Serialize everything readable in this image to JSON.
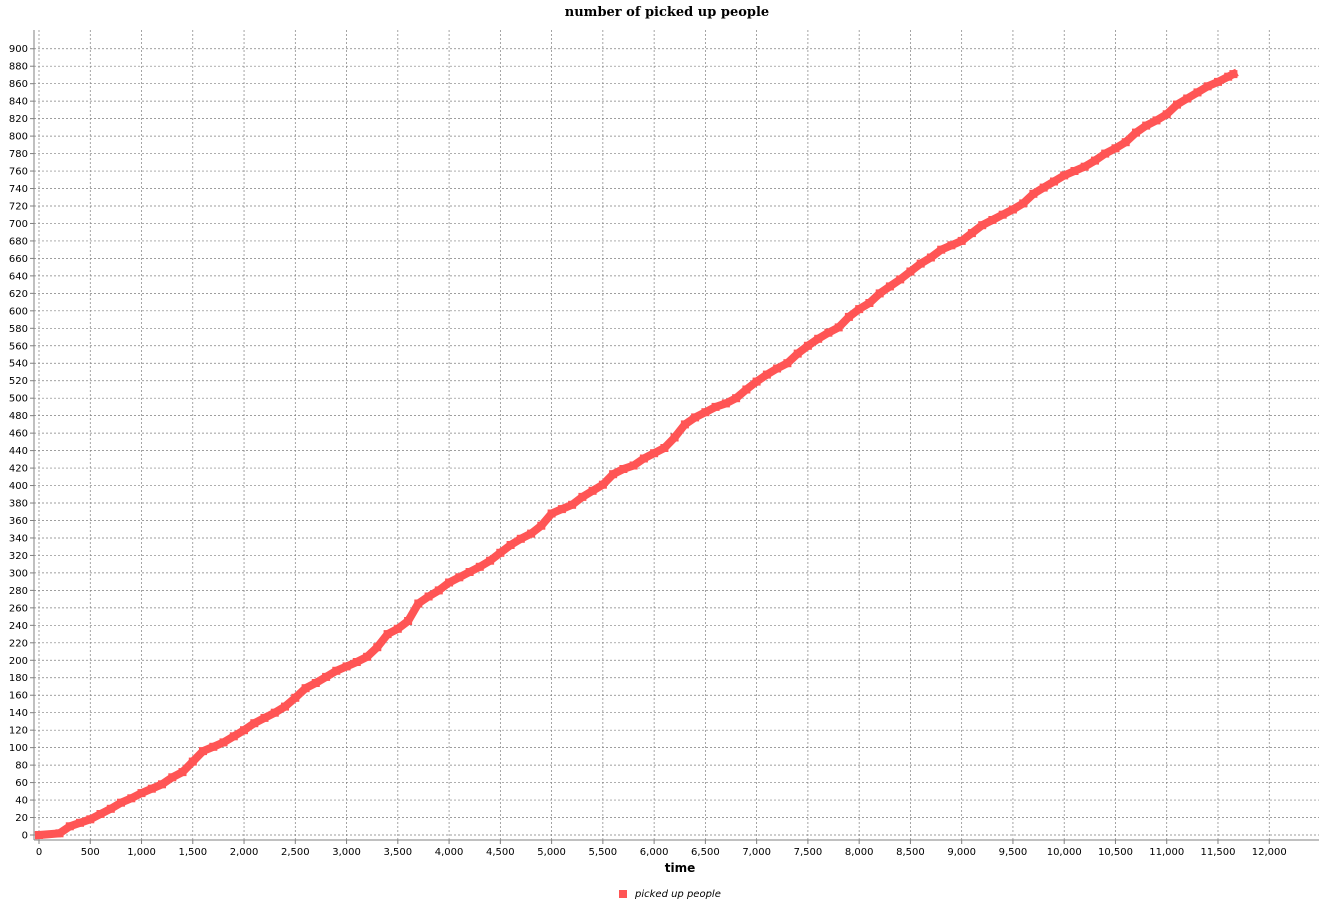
{
  "chart_data": {
    "type": "line",
    "title": "number of picked up people",
    "xlabel": "time",
    "ylabel": "",
    "xlim": [
      0,
      12300
    ],
    "ylim": [
      0,
      910
    ],
    "x_ticks": [
      0,
      500,
      1000,
      1500,
      2000,
      2500,
      3000,
      3500,
      4000,
      4500,
      5000,
      5500,
      6000,
      6500,
      7000,
      7500,
      8000,
      8500,
      9000,
      9500,
      10000,
      10500,
      11000,
      11500,
      12000
    ],
    "x_tick_labels": [
      "0",
      "500",
      "1,000",
      "1,500",
      "2,000",
      "2,500",
      "3,000",
      "3,500",
      "4,000",
      "4,500",
      "5,000",
      "5,500",
      "6,000",
      "6,500",
      "7,000",
      "7,500",
      "8,000",
      "8,500",
      "9,000",
      "9,500",
      "10,000",
      "10,500",
      "11,000",
      "11,500",
      "12,000"
    ],
    "y_ticks": [
      0,
      20,
      40,
      60,
      80,
      100,
      120,
      140,
      160,
      180,
      200,
      220,
      240,
      260,
      280,
      300,
      320,
      340,
      360,
      380,
      400,
      420,
      440,
      460,
      480,
      500,
      520,
      540,
      560,
      580,
      600,
      620,
      640,
      660,
      680,
      700,
      720,
      740,
      760,
      780,
      800,
      820,
      840,
      860,
      880,
      900
    ],
    "y_tick_labels": [
      "0",
      "20",
      "40",
      "60",
      "80",
      "100",
      "120",
      "140",
      "160",
      "180",
      "200",
      "220",
      "240",
      "260",
      "280",
      "300",
      "320",
      "340",
      "360",
      "380",
      "400",
      "420",
      "440",
      "460",
      "480",
      "500",
      "520",
      "540",
      "560",
      "580",
      "600",
      "620",
      "640",
      "660",
      "680",
      "700",
      "720",
      "740",
      "760",
      "780",
      "800",
      "820",
      "840",
      "860",
      "880",
      "900"
    ],
    "grid": true,
    "legend_position": "bottom-center",
    "series": [
      {
        "name": "picked up people",
        "color": "#ff5555",
        "x": [
          0,
          200,
          300,
          400,
          500,
          600,
          700,
          800,
          900,
          1000,
          1100,
          1200,
          1300,
          1400,
          1500,
          1600,
          1700,
          1800,
          1900,
          2000,
          2100,
          2200,
          2300,
          2400,
          2500,
          2600,
          2700,
          2800,
          2900,
          3000,
          3100,
          3200,
          3300,
          3400,
          3500,
          3600,
          3700,
          3800,
          3900,
          4000,
          4100,
          4200,
          4300,
          4400,
          4500,
          4600,
          4700,
          4800,
          4900,
          5000,
          5100,
          5200,
          5300,
          5400,
          5500,
          5600,
          5700,
          5800,
          5900,
          6000,
          6100,
          6200,
          6300,
          6400,
          6500,
          6600,
          6700,
          6800,
          6900,
          7000,
          7100,
          7200,
          7300,
          7400,
          7500,
          7600,
          7700,
          7800,
          7900,
          8000,
          8100,
          8200,
          8300,
          8400,
          8500,
          8600,
          8700,
          8800,
          8900,
          9000,
          9100,
          9200,
          9300,
          9400,
          9500,
          9600,
          9700,
          9800,
          9900,
          10000,
          10100,
          10200,
          10300,
          10400,
          10500,
          10600,
          10700,
          10800,
          10900,
          11000,
          11100,
          11200,
          11300,
          11400,
          11500,
          11600,
          11650
        ],
        "values": [
          0,
          2,
          10,
          14,
          18,
          24,
          30,
          37,
          42,
          48,
          53,
          58,
          66,
          72,
          84,
          96,
          101,
          106,
          113,
          120,
          128,
          134,
          140,
          147,
          157,
          168,
          174,
          181,
          188,
          193,
          198,
          204,
          215,
          230,
          236,
          245,
          265,
          273,
          280,
          289,
          295,
          301,
          307,
          314,
          323,
          332,
          339,
          345,
          354,
          368,
          373,
          378,
          387,
          394,
          401,
          413,
          419,
          423,
          431,
          437,
          443,
          455,
          470,
          478,
          484,
          490,
          494,
          500,
          510,
          519,
          527,
          534,
          540,
          551,
          560,
          568,
          575,
          581,
          593,
          602,
          609,
          620,
          628,
          636,
          645,
          654,
          661,
          670,
          675,
          680,
          689,
          698,
          704,
          710,
          716,
          723,
          734,
          741,
          748,
          755,
          760,
          765,
          772,
          780,
          786,
          793,
          804,
          812,
          818,
          825,
          836,
          843,
          850,
          857,
          862,
          868,
          871
        ]
      }
    ]
  }
}
